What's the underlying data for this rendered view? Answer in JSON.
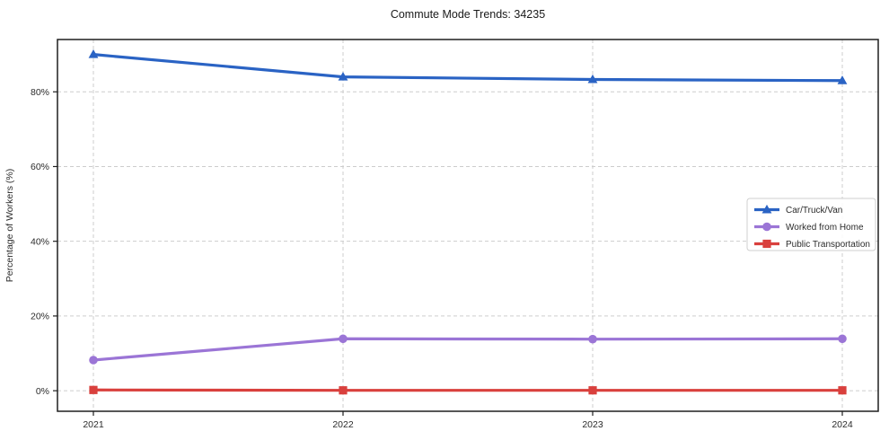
{
  "page": {
    "title": "Commute Mode Trends: 34235"
  },
  "chart_data": {
    "type": "line",
    "title": "Commute Mode Trends: 34235",
    "xlabel": "",
    "ylabel": "Percentage of Workers (%)",
    "categories": [
      "2021",
      "2022",
      "2023",
      "2024"
    ],
    "series": [
      {
        "name": "Car/Truck/Van",
        "marker": "triangle",
        "color": "#2a63c4",
        "values": [
          90.0,
          84.0,
          83.3,
          83.0
        ]
      },
      {
        "name": "Worked from Home",
        "marker": "circle",
        "color": "#9b75d6",
        "values": [
          8.2,
          13.9,
          13.8,
          13.9
        ]
      },
      {
        "name": "Public Transportation",
        "marker": "square",
        "color": "#d9403d",
        "values": [
          0.2,
          0.1,
          0.1,
          0.1
        ]
      }
    ],
    "yticks": [
      {
        "value": 0,
        "label": "0%"
      },
      {
        "value": 20,
        "label": "20%"
      },
      {
        "value": 40,
        "label": "40%"
      },
      {
        "value": 60,
        "label": "60%"
      },
      {
        "value": 80,
        "label": "80%"
      }
    ],
    "ylim": [
      -5.5,
      94.0
    ],
    "grid": true,
    "grid_style": "dashed",
    "legend_position": "center-right"
  },
  "colors": {
    "grid": "#cdcdcd",
    "axis_border": "#1f1f1f",
    "tick_text": "#2b2b2b",
    "legend_border": "#cfcfcf",
    "legend_bg": "#ffffff"
  }
}
